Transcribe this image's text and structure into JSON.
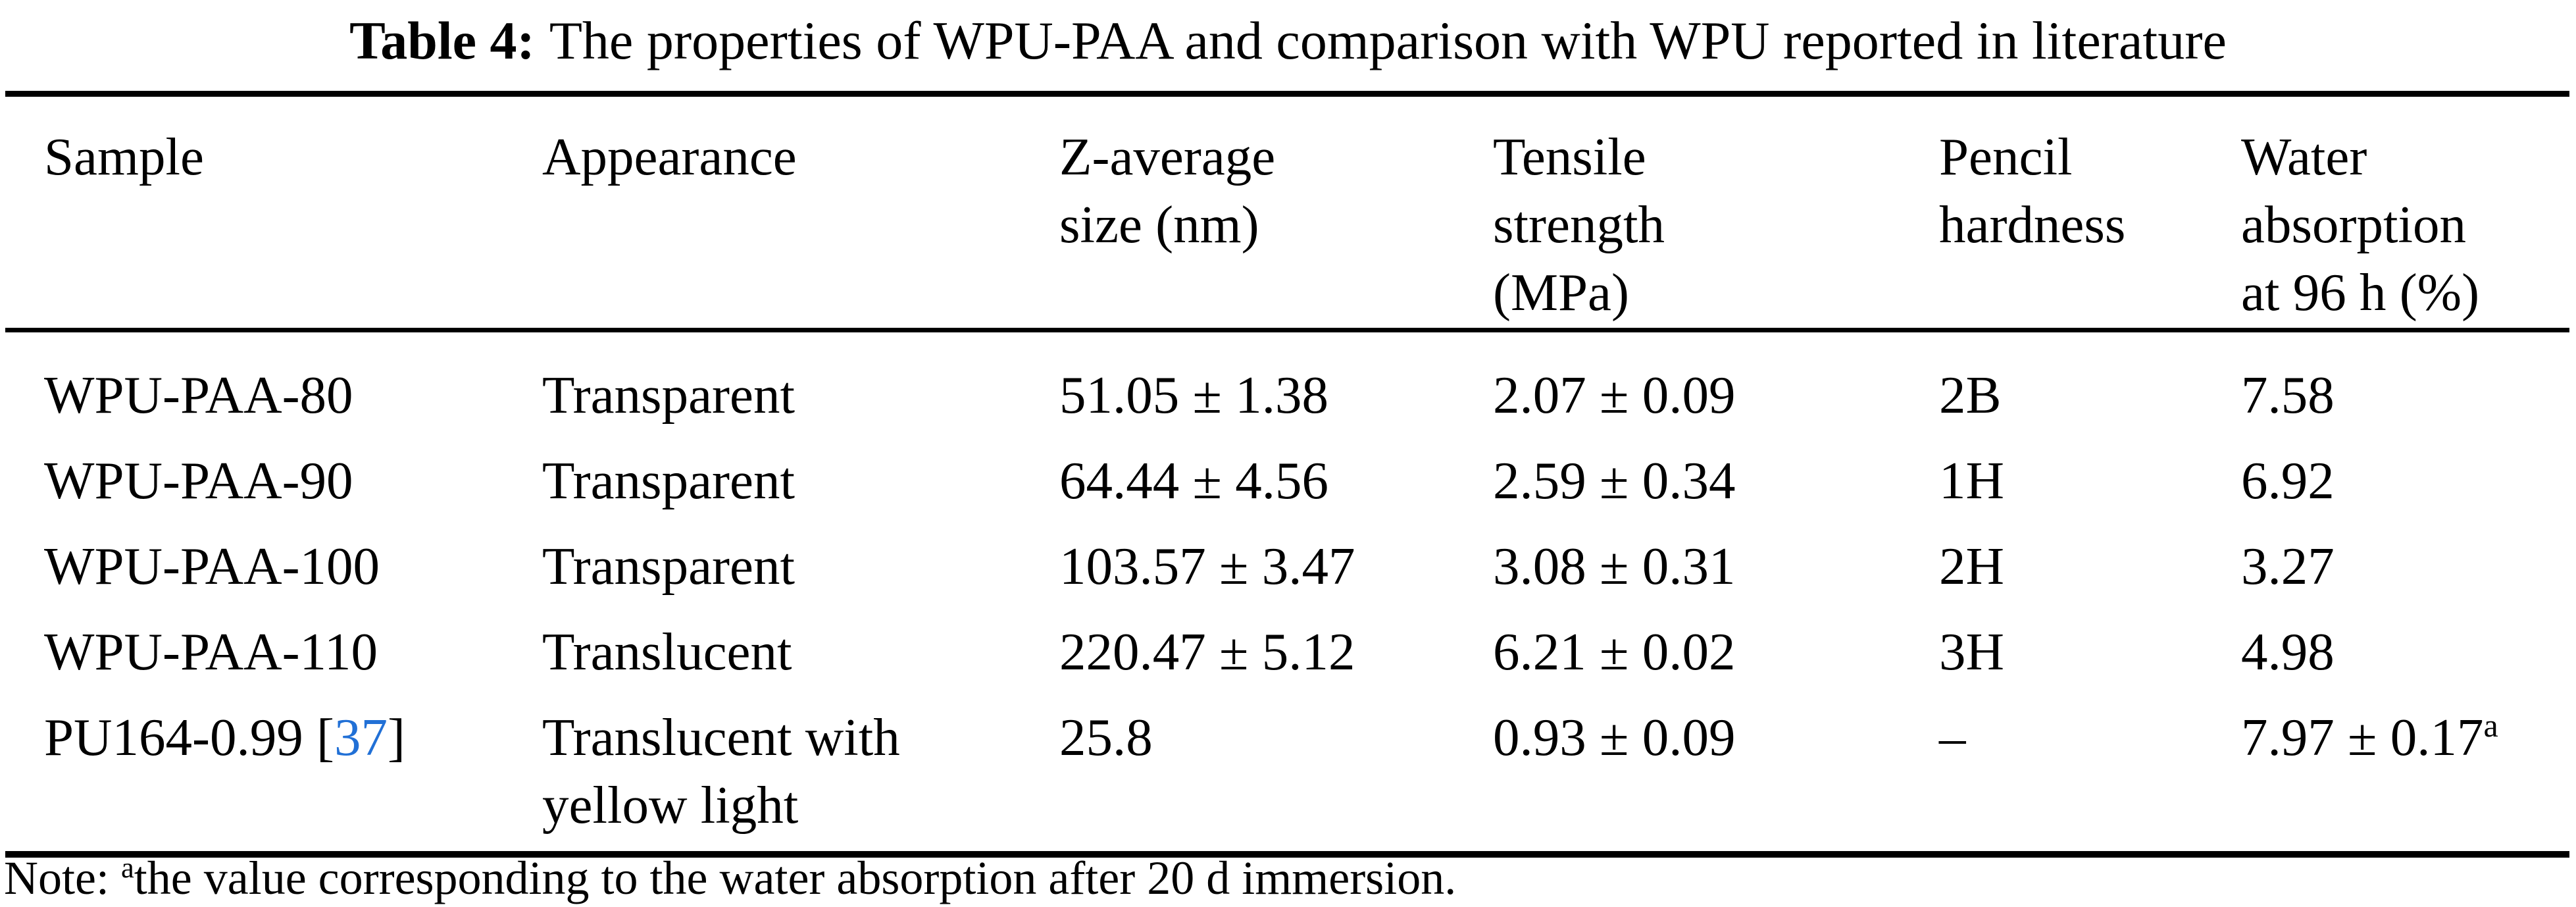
{
  "title": {
    "label": "Table 4:",
    "text": "The properties of WPU-PAA and comparison with WPU reported in literature"
  },
  "table": {
    "headers": [
      {
        "lines": [
          "Sample"
        ]
      },
      {
        "lines": [
          "Appearance"
        ]
      },
      {
        "lines": [
          "Z-average",
          "size (nm)"
        ]
      },
      {
        "lines": [
          "Tensile",
          "strength",
          "(MPa)"
        ]
      },
      {
        "lines": [
          "Pencil",
          "hardness"
        ]
      },
      {
        "lines": [
          "Water",
          "absorption",
          "at 96 h (%)"
        ]
      }
    ],
    "rows": [
      {
        "sample": "WPU-PAA-80",
        "appearance_lines": [
          "Transparent"
        ],
        "z_average": "51.05 ± 1.38",
        "tensile": "2.07 ± 0.09",
        "pencil": "2B",
        "water": "7.58"
      },
      {
        "sample": "WPU-PAA-90",
        "appearance_lines": [
          "Transparent"
        ],
        "z_average": "64.44 ± 4.56",
        "tensile": "2.59 ± 0.34",
        "pencil": "1H",
        "water": "6.92"
      },
      {
        "sample": "WPU-PAA-100",
        "appearance_lines": [
          "Transparent"
        ],
        "z_average": "103.57 ± 3.47",
        "tensile": "3.08 ± 0.31",
        "pencil": "2H",
        "water": "3.27"
      },
      {
        "sample": "WPU-PAA-110",
        "appearance_lines": [
          "Translucent"
        ],
        "z_average": "220.47 ± 5.12",
        "tensile": "6.21 ± 0.02",
        "pencil": "3H",
        "water": "4.98"
      },
      {
        "sample_prefix": "PU164-0.99 [",
        "citation": "37",
        "sample_suffix": "]",
        "appearance_lines": [
          "Translucent with",
          "yellow light"
        ],
        "z_average": "25.8",
        "tensile": "0.93 ± 0.09",
        "pencil": "–",
        "water": "7.97 ± 0.17",
        "water_superscript": "a"
      }
    ]
  },
  "note": {
    "prefix": "Note: ",
    "superscript": "a",
    "text": "the value corresponding to the water absorption after 20 d immersion."
  },
  "colors": {
    "citation_blue": "#2170d6",
    "text_black": "#000000",
    "background_white": "#ffffff"
  }
}
